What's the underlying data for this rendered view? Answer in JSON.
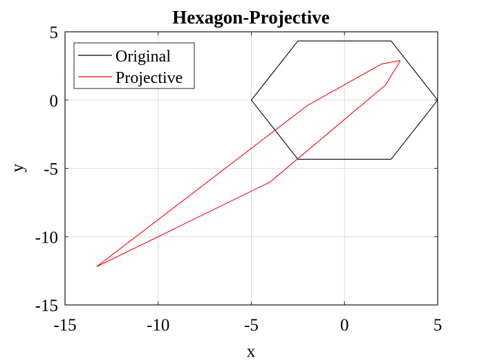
{
  "chart_data": {
    "type": "line",
    "title": "Hexagon-Projective",
    "xlabel": "x",
    "ylabel": "y",
    "xlim": [
      -15,
      5
    ],
    "ylim": [
      -15,
      5
    ],
    "xticks": [
      -15,
      -10,
      -5,
      0,
      5
    ],
    "yticks": [
      -15,
      -10,
      -5,
      0,
      5
    ],
    "xtick_labels": [
      "-15",
      "-10",
      "-5",
      "0",
      "5"
    ],
    "ytick_labels": [
      "-15",
      "-10",
      "-5",
      "0",
      "5"
    ],
    "grid": true,
    "legend_position": "top-left",
    "series": [
      {
        "name": "Original",
        "color": "#000000",
        "x": [
          5,
          2.5,
          -2.5,
          -5,
          -2.5,
          2.5,
          5
        ],
        "y": [
          0,
          4.33,
          4.33,
          0,
          -4.33,
          -4.33,
          0
        ]
      },
      {
        "name": "Projective",
        "color": "#ff0000",
        "x": [
          3.0,
          2.0,
          -2.0,
          -13.3,
          -4.0,
          2.2,
          3.0
        ],
        "y": [
          2.9,
          2.65,
          -0.4,
          -12.2,
          -6.0,
          1.1,
          2.9
        ]
      }
    ]
  }
}
